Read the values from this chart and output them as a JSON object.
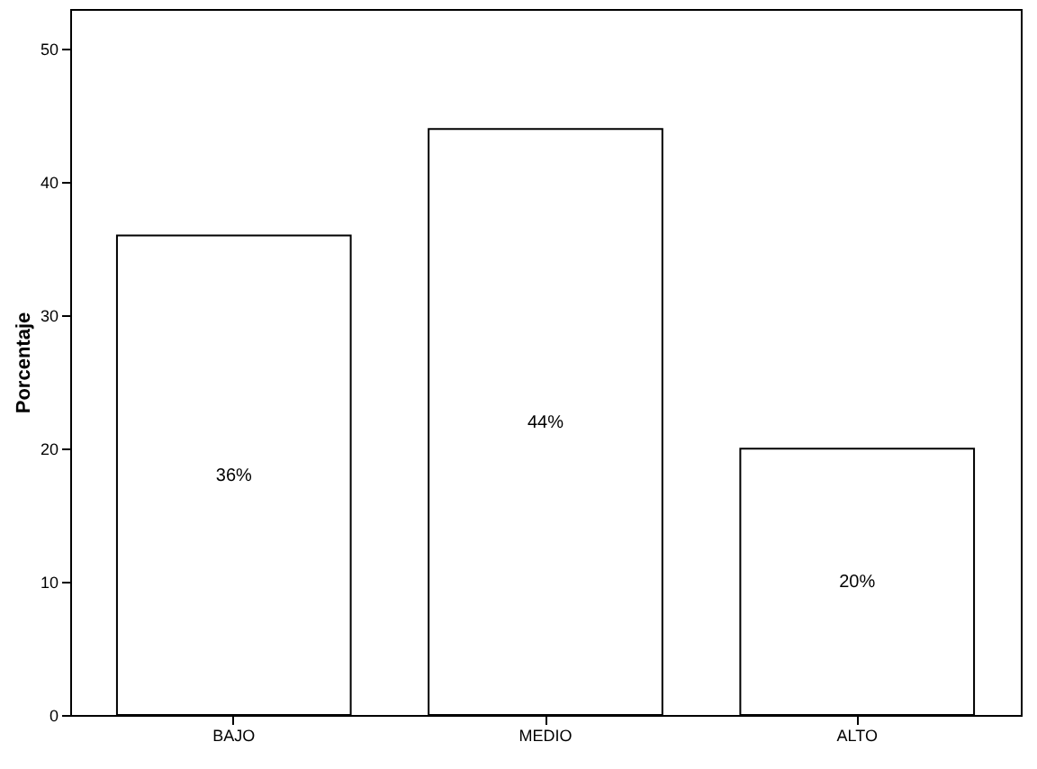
{
  "chart_data": {
    "type": "bar",
    "ylabel": "Porcentaje",
    "categories": [
      "BAJO",
      "MEDIO",
      "ALTO"
    ],
    "values": [
      36,
      44,
      20
    ],
    "value_labels": [
      "36%",
      "44%",
      "20%"
    ],
    "color": "#ffffff",
    "ylim": [
      0,
      53
    ],
    "yticks": [
      0,
      10,
      20,
      30,
      40,
      50
    ],
    "grid": false
  }
}
